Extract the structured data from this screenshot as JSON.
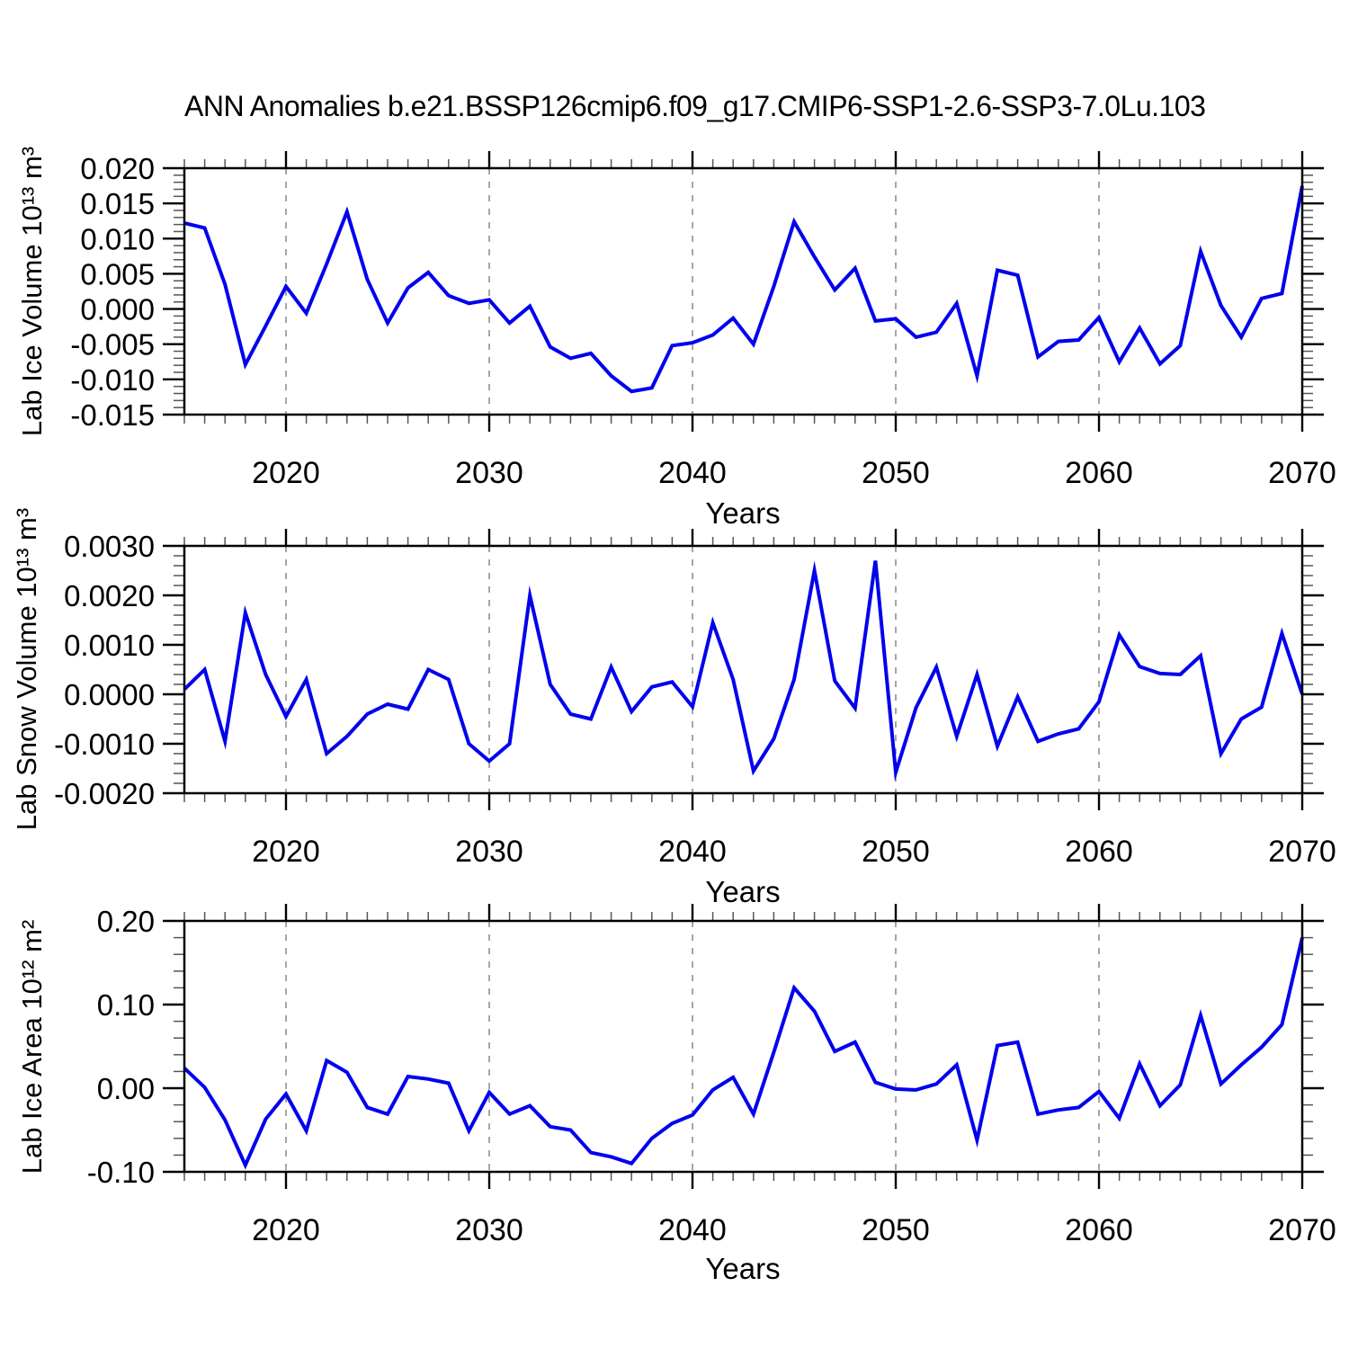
{
  "page": {
    "background": "#ffffff",
    "title": "ANN Anomalies b.e21.BSSP126cmip6.f09_g17.CMIP6-SSP1-2.6-SSP3-7.0Lu.103"
  },
  "chart_data": [
    {
      "type": "line",
      "panel": "top",
      "ylabel": "Lab Ice Volume 10¹³ m³",
      "xlabel": "Years",
      "line_color": "#0000EE",
      "grid": "vertical-dashed",
      "legend": "none",
      "x_range": [
        2015,
        2070
      ],
      "x_step": 1,
      "ylim": [
        -0.015,
        0.02
      ],
      "ytick_values": [
        0.02,
        0.015,
        0.01,
        0.005,
        0.0,
        -0.005,
        -0.01,
        -0.015
      ],
      "ytick_labels": [
        "0.020",
        "0.015",
        "0.010",
        "0.005",
        "0.000",
        "-0.005",
        "-0.010",
        "-0.015"
      ],
      "y_minor_step": 0.001,
      "xtick_values": [
        2020,
        2030,
        2040,
        2050,
        2060,
        2070
      ],
      "xtick_labels": [
        "2020",
        "2030",
        "2040",
        "2050",
        "2060",
        "2070"
      ],
      "x_minor_step": 1,
      "gridline_years": [
        2020,
        2030,
        2040,
        2050,
        2060
      ],
      "values": [
        0.0122,
        0.0115,
        0.0035,
        -0.0079,
        -0.0024,
        0.0032,
        -0.0006,
        0.0064,
        0.0138,
        0.0042,
        -0.002,
        0.003,
        0.0052,
        0.0019,
        0.0008,
        0.0013,
        -0.002,
        0.0004,
        -0.0054,
        -0.007,
        -0.0063,
        -0.0095,
        -0.0117,
        -0.0112,
        -0.0052,
        -0.0048,
        -0.0037,
        -0.0013,
        -0.005,
        0.0032,
        0.0124,
        0.0074,
        0.0027,
        0.0058,
        -0.0017,
        -0.0014,
        -0.004,
        -0.0033,
        0.0008,
        -0.0095,
        0.0055,
        0.0048,
        -0.0068,
        -0.0046,
        -0.0044,
        -0.0012,
        -0.0075,
        -0.0027,
        -0.0078,
        -0.0052,
        0.0082,
        0.0005,
        -0.004,
        0.0015,
        0.0022,
        0.0175
      ]
    },
    {
      "type": "line",
      "panel": "middle",
      "ylabel": "Lab Snow Volume 10¹³ m³",
      "xlabel": "Years",
      "line_color": "#0000EE",
      "grid": "vertical-dashed",
      "legend": "none",
      "x_range": [
        2015,
        2070
      ],
      "x_step": 1,
      "ylim": [
        -0.002,
        0.003
      ],
      "ytick_values": [
        0.003,
        0.002,
        0.001,
        0.0,
        -0.001,
        -0.002
      ],
      "ytick_labels": [
        "0.0030",
        "0.0020",
        "0.0010",
        "0.0000",
        "-0.0010",
        "-0.0020"
      ],
      "y_minor_step": 0.0002,
      "xtick_values": [
        2020,
        2030,
        2040,
        2050,
        2060,
        2070
      ],
      "xtick_labels": [
        "2020",
        "2030",
        "2040",
        "2050",
        "2060",
        "2070"
      ],
      "x_minor_step": 1,
      "gridline_years": [
        2020,
        2030,
        2040,
        2050,
        2060
      ],
      "values": [
        0.0001,
        0.0005,
        -0.00095,
        0.00165,
        0.0004,
        -0.00045,
        0.0003,
        -0.0012,
        -0.00085,
        -0.0004,
        -0.0002,
        -0.0003,
        0.0005,
        0.0003,
        -0.001,
        -0.00135,
        -0.001,
        0.002,
        0.0002,
        -0.0004,
        -0.0005,
        0.00055,
        -0.00035,
        0.00015,
        0.00025,
        -0.00025,
        0.00145,
        0.0003,
        -0.00155,
        -0.0009,
        0.0003,
        0.0025,
        0.00027,
        -0.00028,
        0.0027,
        -0.00158,
        -0.00027,
        0.00055,
        -0.00085,
        0.0004,
        -0.00105,
        -5e-05,
        -0.00095,
        -0.0008,
        -0.0007,
        -0.00015,
        0.0012,
        0.00056,
        0.00042,
        0.0004,
        0.00078,
        -0.0012,
        -0.0005,
        -0.00026,
        0.00123,
        0.0
      ]
    },
    {
      "type": "line",
      "panel": "bottom",
      "ylabel": "Lab Ice Area 10¹² m²",
      "xlabel": "Years",
      "line_color": "#0000EE",
      "grid": "vertical-dashed",
      "legend": "none",
      "x_range": [
        2015,
        2070
      ],
      "x_step": 1,
      "ylim": [
        -0.1,
        0.2
      ],
      "ytick_values": [
        0.2,
        0.1,
        0.0,
        -0.1
      ],
      "ytick_labels": [
        "0.20",
        "0.10",
        "0.00",
        "-0.10"
      ],
      "y_minor_step": 0.02,
      "xtick_values": [
        2020,
        2030,
        2040,
        2050,
        2060,
        2070
      ],
      "xtick_labels": [
        "2020",
        "2030",
        "2040",
        "2050",
        "2060",
        "2070"
      ],
      "x_minor_step": 1,
      "gridline_years": [
        2020,
        2030,
        2040,
        2050,
        2060
      ],
      "values": [
        0.024,
        0.001,
        -0.038,
        -0.092,
        -0.037,
        -0.007,
        -0.051,
        0.033,
        0.019,
        -0.023,
        -0.031,
        0.014,
        0.011,
        0.006,
        -0.051,
        -0.005,
        -0.031,
        -0.021,
        -0.046,
        -0.05,
        -0.077,
        -0.082,
        -0.09,
        -0.06,
        -0.042,
        -0.032,
        -0.002,
        0.013,
        -0.031,
        0.043,
        0.12,
        0.092,
        0.044,
        0.055,
        0.007,
        -0.001,
        -0.002,
        0.005,
        0.028,
        -0.062,
        0.051,
        0.055,
        -0.031,
        -0.026,
        -0.023,
        -0.004,
        -0.036,
        0.029,
        -0.021,
        0.004,
        0.087,
        0.005,
        0.028,
        0.049,
        0.076,
        0.18
      ]
    }
  ]
}
